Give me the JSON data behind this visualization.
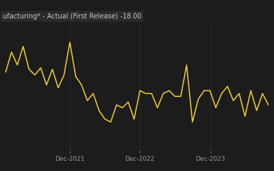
{
  "title": "ufacturing* - Actual (First Release) -18.00",
  "background_color": "#1c1c1c",
  "line_color": "#e8c832",
  "grid_color": "#2e2e2e",
  "text_color": "#c8c8c8",
  "xlabel_color": "#999999",
  "title_bg_color": "#2a2a2a",
  "ylim": [
    -50,
    40
  ],
  "x_tick_positions": [
    11,
    23,
    35
  ],
  "x_tick_labels": [
    "Dec-2021",
    "Dec-2022",
    "Dec-2023"
  ],
  "data": [
    5,
    19,
    10,
    23,
    7,
    3,
    8,
    -4,
    7,
    -6,
    3,
    26,
    2,
    -4,
    -15,
    -10,
    -22,
    -28,
    -30,
    -18,
    -20,
    -16,
    -28,
    -8,
    -10,
    -10,
    -20,
    -10,
    -8,
    -12,
    -12,
    10,
    -30,
    -14,
    -8,
    -8,
    -20,
    -10,
    -5,
    -15,
    -10,
    -26,
    -8,
    -22,
    -10,
    -18
  ]
}
